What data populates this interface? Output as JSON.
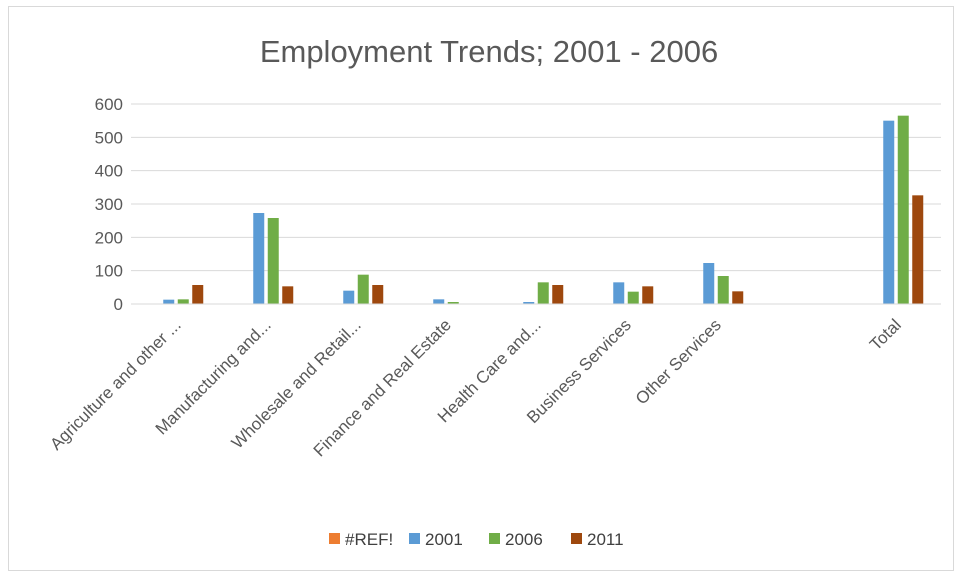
{
  "chart_data": {
    "type": "bar",
    "title": "Employment Trends; 2001 - 2006",
    "xlabel": "",
    "ylabel": "",
    "ylim": [
      0,
      600
    ],
    "yticks": [
      "0",
      "100",
      "200",
      "300",
      "400",
      "500",
      "600"
    ],
    "grid": true,
    "legend_position": "bottom",
    "categories": [
      "Agriculture and other ...",
      "Manufacturing and...",
      "Wholesale and Retail...",
      "Finance and Real Estate",
      "Health Care and...",
      "Business Services",
      "Other Services",
      "",
      "Total"
    ],
    "series": [
      {
        "name": "#REF!",
        "color": "#ED7D31",
        "values": [
          0,
          0,
          0,
          0,
          0,
          0,
          0,
          0,
          0
        ]
      },
      {
        "name": "2001",
        "color": "#5B9BD5",
        "values": [
          13,
          273,
          40,
          14,
          6,
          65,
          123,
          0,
          550
        ]
      },
      {
        "name": "2006",
        "color": "#70AD47",
        "values": [
          14,
          258,
          88,
          6,
          65,
          37,
          84,
          0,
          565
        ]
      },
      {
        "name": "2011",
        "color": "#9E480E",
        "values": [
          57,
          53,
          57,
          0,
          57,
          53,
          38,
          0,
          326
        ]
      }
    ]
  }
}
